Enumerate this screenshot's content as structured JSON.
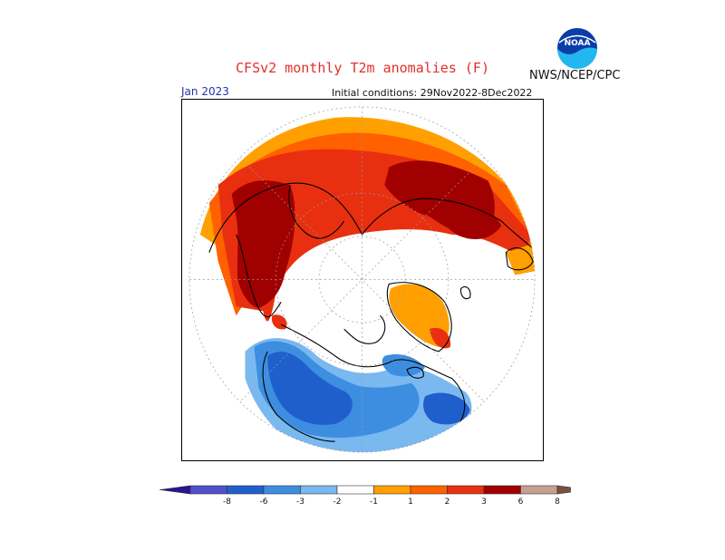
{
  "header": {
    "title": "CFSv2 monthly T2m anomalies (F)",
    "agency": "NWS/NCEP/CPC",
    "logo_text": "NOAA"
  },
  "map": {
    "valid_month": "Jan 2023",
    "initial_conditions": "Initial conditions: 29Nov2022-8Dec2022",
    "projection": "north-polar-stereographic"
  },
  "colorbar": {
    "tick_labels": [
      "-8",
      "-6",
      "-3",
      "-2",
      "-1",
      "1",
      "2",
      "3",
      "6",
      "8"
    ],
    "colors": {
      "below_-8": "#2a1490",
      "-8_to_-6": "#5050cc",
      "-6_to_-3": "#1e5fcc",
      "-3_to_-2": "#3d8ee0",
      "-2_to_-1": "#7ab8f0",
      "-1_to_1": "#ffffff",
      "1_to_2": "#ffa000",
      "2_to_3": "#ff6000",
      "3_to_6": "#e83010",
      "6_to_8": "#a00000",
      "above_8": "#c8a090",
      "arrow_high": "#7a5040"
    }
  }
}
